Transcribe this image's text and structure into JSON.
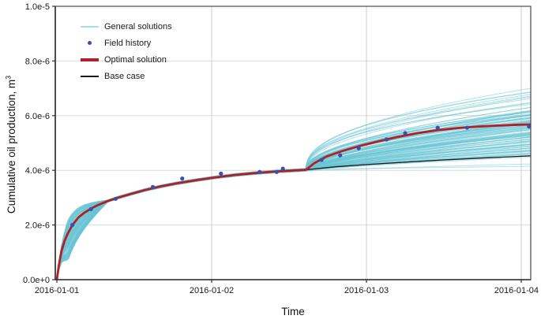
{
  "figure": {
    "x_axis_label": "Time",
    "y_axis_label": "Cumulative oil production, m",
    "y_axis_label_exponent": "3",
    "x_tick_labels": [
      "2016-01-01",
      "2016-01-02",
      "2016-01-03",
      "2016-01-04"
    ],
    "y_tick_labels": [
      "0.0e+0",
      "2.0e-6",
      "4.0e-6",
      "6.0e-6",
      "8.0e-6",
      "1.0e-5"
    ]
  },
  "legend": {
    "items": [
      {
        "label": "General solutions",
        "type": "line",
        "color": "#a9dde9",
        "weight": 2
      },
      {
        "label": "Field history",
        "type": "dot",
        "color": "#3c4fae",
        "weight": 5
      },
      {
        "label": "Optimal solution",
        "type": "line",
        "color": "#b02025",
        "weight": 4
      },
      {
        "label": "Base case",
        "type": "line",
        "color": "#1a1a1a",
        "weight": 2
      }
    ]
  },
  "chart_data": {
    "type": "line",
    "title": "",
    "xlabel": "Time",
    "ylabel": "Cumulative oil production, m3",
    "x_unit": "days since 2016-01-01",
    "xlim": [
      -0.01,
      3.06
    ],
    "ylim": [
      0,
      1e-05
    ],
    "x_ticks": [
      0,
      1,
      2,
      3
    ],
    "y_ticks": [
      0,
      2e-06,
      4e-06,
      6e-06,
      8e-06,
      1e-05
    ],
    "grid": true,
    "legend_position": "upper-left-inside",
    "colors": {
      "general": "rgba(106,197,213,0.5)",
      "optimal": "#b02025",
      "base": "#1a1a1a",
      "history": "#3c4fae",
      "grid_h": "#dcdcdc",
      "grid_v": "#cfcfcf",
      "axis": "#2e2e2e",
      "border": "#4d4d4d",
      "text": "#1a1a1a"
    },
    "series": [
      {
        "name": "Optimal solution",
        "type": "line",
        "color": "#b02025",
        "width": 2.8,
        "points": [
          [
            0,
            0
          ],
          [
            0.012,
            5e-07
          ],
          [
            0.03,
            1.05e-06
          ],
          [
            0.05,
            1.42e-06
          ],
          [
            0.07,
            1.68e-06
          ],
          [
            0.1,
            2e-06
          ],
          [
            0.14,
            2.28e-06
          ],
          [
            0.18,
            2.46e-06
          ],
          [
            0.22,
            2.6e-06
          ],
          [
            0.27,
            2.74e-06
          ],
          [
            0.33,
            2.88e-06
          ],
          [
            0.4,
            3.01e-06
          ],
          [
            0.48,
            3.14e-06
          ],
          [
            0.57,
            3.28e-06
          ],
          [
            0.67,
            3.41e-06
          ],
          [
            0.78,
            3.53e-06
          ],
          [
            0.9,
            3.64e-06
          ],
          [
            1.02,
            3.74e-06
          ],
          [
            1.15,
            3.83e-06
          ],
          [
            1.28,
            3.9e-06
          ],
          [
            1.42,
            3.96e-06
          ],
          [
            1.61,
            4.02e-06
          ],
          [
            1.66,
            4.25e-06
          ],
          [
            1.74,
            4.5e-06
          ],
          [
            1.84,
            4.7e-06
          ],
          [
            1.95,
            4.88e-06
          ],
          [
            2.07,
            5.05e-06
          ],
          [
            2.2,
            5.22e-06
          ],
          [
            2.33,
            5.36e-06
          ],
          [
            2.46,
            5.47e-06
          ],
          [
            2.6,
            5.55e-06
          ],
          [
            2.75,
            5.61e-06
          ],
          [
            2.9,
            5.65e-06
          ],
          [
            3.06,
            5.68e-06
          ]
        ]
      },
      {
        "name": "Base case",
        "type": "line",
        "color": "#1a1a1a",
        "width": 1.3,
        "points": [
          [
            1.61,
            4.02e-06
          ],
          [
            1.8,
            4.13e-06
          ],
          [
            2.0,
            4.21e-06
          ],
          [
            2.25,
            4.3e-06
          ],
          [
            2.5,
            4.38e-06
          ],
          [
            2.75,
            4.45e-06
          ],
          [
            3.06,
            4.53e-06
          ]
        ]
      },
      {
        "name": "Field history",
        "type": "scatter",
        "color": "#3c4fae",
        "radius": 2.6,
        "points": [
          [
            0.1,
            2e-06
          ],
          [
            0.22,
            2.58e-06
          ],
          [
            0.38,
            2.96e-06
          ],
          [
            0.62,
            3.39e-06
          ],
          [
            0.81,
            3.7e-06
          ],
          [
            1.06,
            3.88e-06
          ],
          [
            1.31,
            3.94e-06
          ],
          [
            1.42,
            3.94e-06
          ],
          [
            1.46,
            4.06e-06
          ],
          [
            1.71,
            4.38e-06
          ],
          [
            1.83,
            4.55e-06
          ],
          [
            1.95,
            4.81e-06
          ],
          [
            2.13,
            5.13e-06
          ],
          [
            2.25,
            5.36e-06
          ],
          [
            2.46,
            5.56e-06
          ],
          [
            2.65,
            5.56e-06
          ],
          [
            3.05,
            5.6e-06
          ]
        ]
      }
    ],
    "general_solutions": {
      "name": "General solutions",
      "count": 120,
      "seed": 1337,
      "line_width": 1,
      "branch_time": 1.61,
      "branch_value": 4.02e-06,
      "end_time": 3.06,
      "final_range": [
        4.1e-06,
        7.05e-06
      ],
      "forced_finals": [
        7e-06,
        6.85e-06,
        4.15e-06
      ],
      "early_spread": [
        -1e-06,
        5e-07
      ]
    }
  }
}
